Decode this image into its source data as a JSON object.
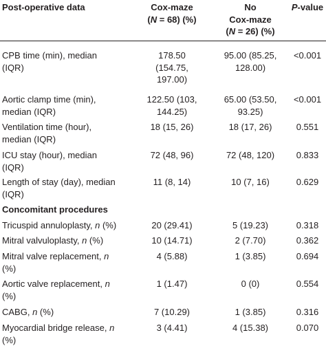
{
  "header": {
    "col1": "Post-operative data",
    "col2_line1": "Cox-maze",
    "col2_n": "N",
    "col2_rest": " = 68) (%)",
    "col3_line1": "No",
    "col3_line2": "Cox-maze",
    "col3_n": "N",
    "col3_rest": " = 26) (%)",
    "col4_p": "P",
    "col4_rest": "-value"
  },
  "rows": [
    {
      "label_l1": "CPB time (min), median",
      "label_l2": "(IQR)",
      "cox_l1": "178.50",
      "cox_l2": "(154.75,",
      "cox_l3": "197.00)",
      "no_l1": "95.00 (85.25,",
      "no_l2": "128.00)",
      "p": "<0.001"
    },
    {
      "label_l1": "Aortic clamp time (min),",
      "label_l2": "median (IQR)",
      "cox_l1": "122.50 (103,",
      "cox_l2": "144.25)",
      "no_l1": "65.00 (53.50,",
      "no_l2": "93.25)",
      "p": "<0.001"
    },
    {
      "label_l1": "Ventilation time (hour),",
      "label_l2": "median (IQR)",
      "cox_l1": "18 (15, 26)",
      "no_l1": "18 (17, 26)",
      "p": "0.551"
    },
    {
      "label_l1": "ICU stay (hour), median",
      "label_l2": "(IQR)",
      "cox_l1": "72 (48, 96)",
      "no_l1": "72 (48, 120)",
      "p": "0.833"
    },
    {
      "label_l1": "Length of stay (day), median",
      "label_l2": "(IQR)",
      "cox_l1": "11 (8, 14)",
      "no_l1": "10 (7, 16)",
      "p": "0.629"
    }
  ],
  "section_title": "Concomitant procedures",
  "procedures": [
    {
      "label": "Tricuspid annuloplasty, ",
      "n": "n",
      "suffix": " (%)",
      "label_l2": "",
      "cox": "20 (29.41)",
      "no": "5 (19.23)",
      "p": "0.318"
    },
    {
      "label": "Mitral valvuloplasty, ",
      "n": "n",
      "suffix": " (%)",
      "label_l2": "",
      "cox": "10 (14.71)",
      "no": "2 (7.70)",
      "p": "0.362"
    },
    {
      "label": "Mitral valve replacement, ",
      "n": "n",
      "suffix": "",
      "label_l2": "(%)",
      "cox": "4 (5.88)",
      "no": "1 (3.85)",
      "p": "0.694"
    },
    {
      "label": "Aortic valve replacement, ",
      "n": "n",
      "suffix": "",
      "label_l2": "(%)",
      "cox": "1 (1.47)",
      "no": "0 (0)",
      "p": "0.554"
    },
    {
      "label": "CABG, ",
      "n": "n",
      "suffix": " (%)",
      "label_l2": "",
      "cox": "7 (10.29)",
      "no": "1 (3.85)",
      "p": "0.316"
    },
    {
      "label": "Myocardial bridge release, ",
      "n": "n",
      "suffix": "",
      "label_l2": "(%)",
      "cox": "3 (4.41)",
      "no": "4 (15.38)",
      "p": "0.070"
    }
  ]
}
